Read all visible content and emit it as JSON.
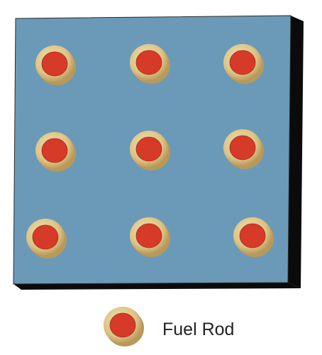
{
  "diagram": {
    "grid": {
      "rows": 3,
      "cols": 3
    },
    "legend": {
      "label": "Fuel Rod"
    },
    "colors": {
      "moderator": "#6b9ab8",
      "moderator_border": "#2a2a2a",
      "shadow": "#0b0b0b",
      "cladding": "#e0c98a",
      "cladding_shade": "#b8995a",
      "fuel": "#d63a28"
    }
  }
}
